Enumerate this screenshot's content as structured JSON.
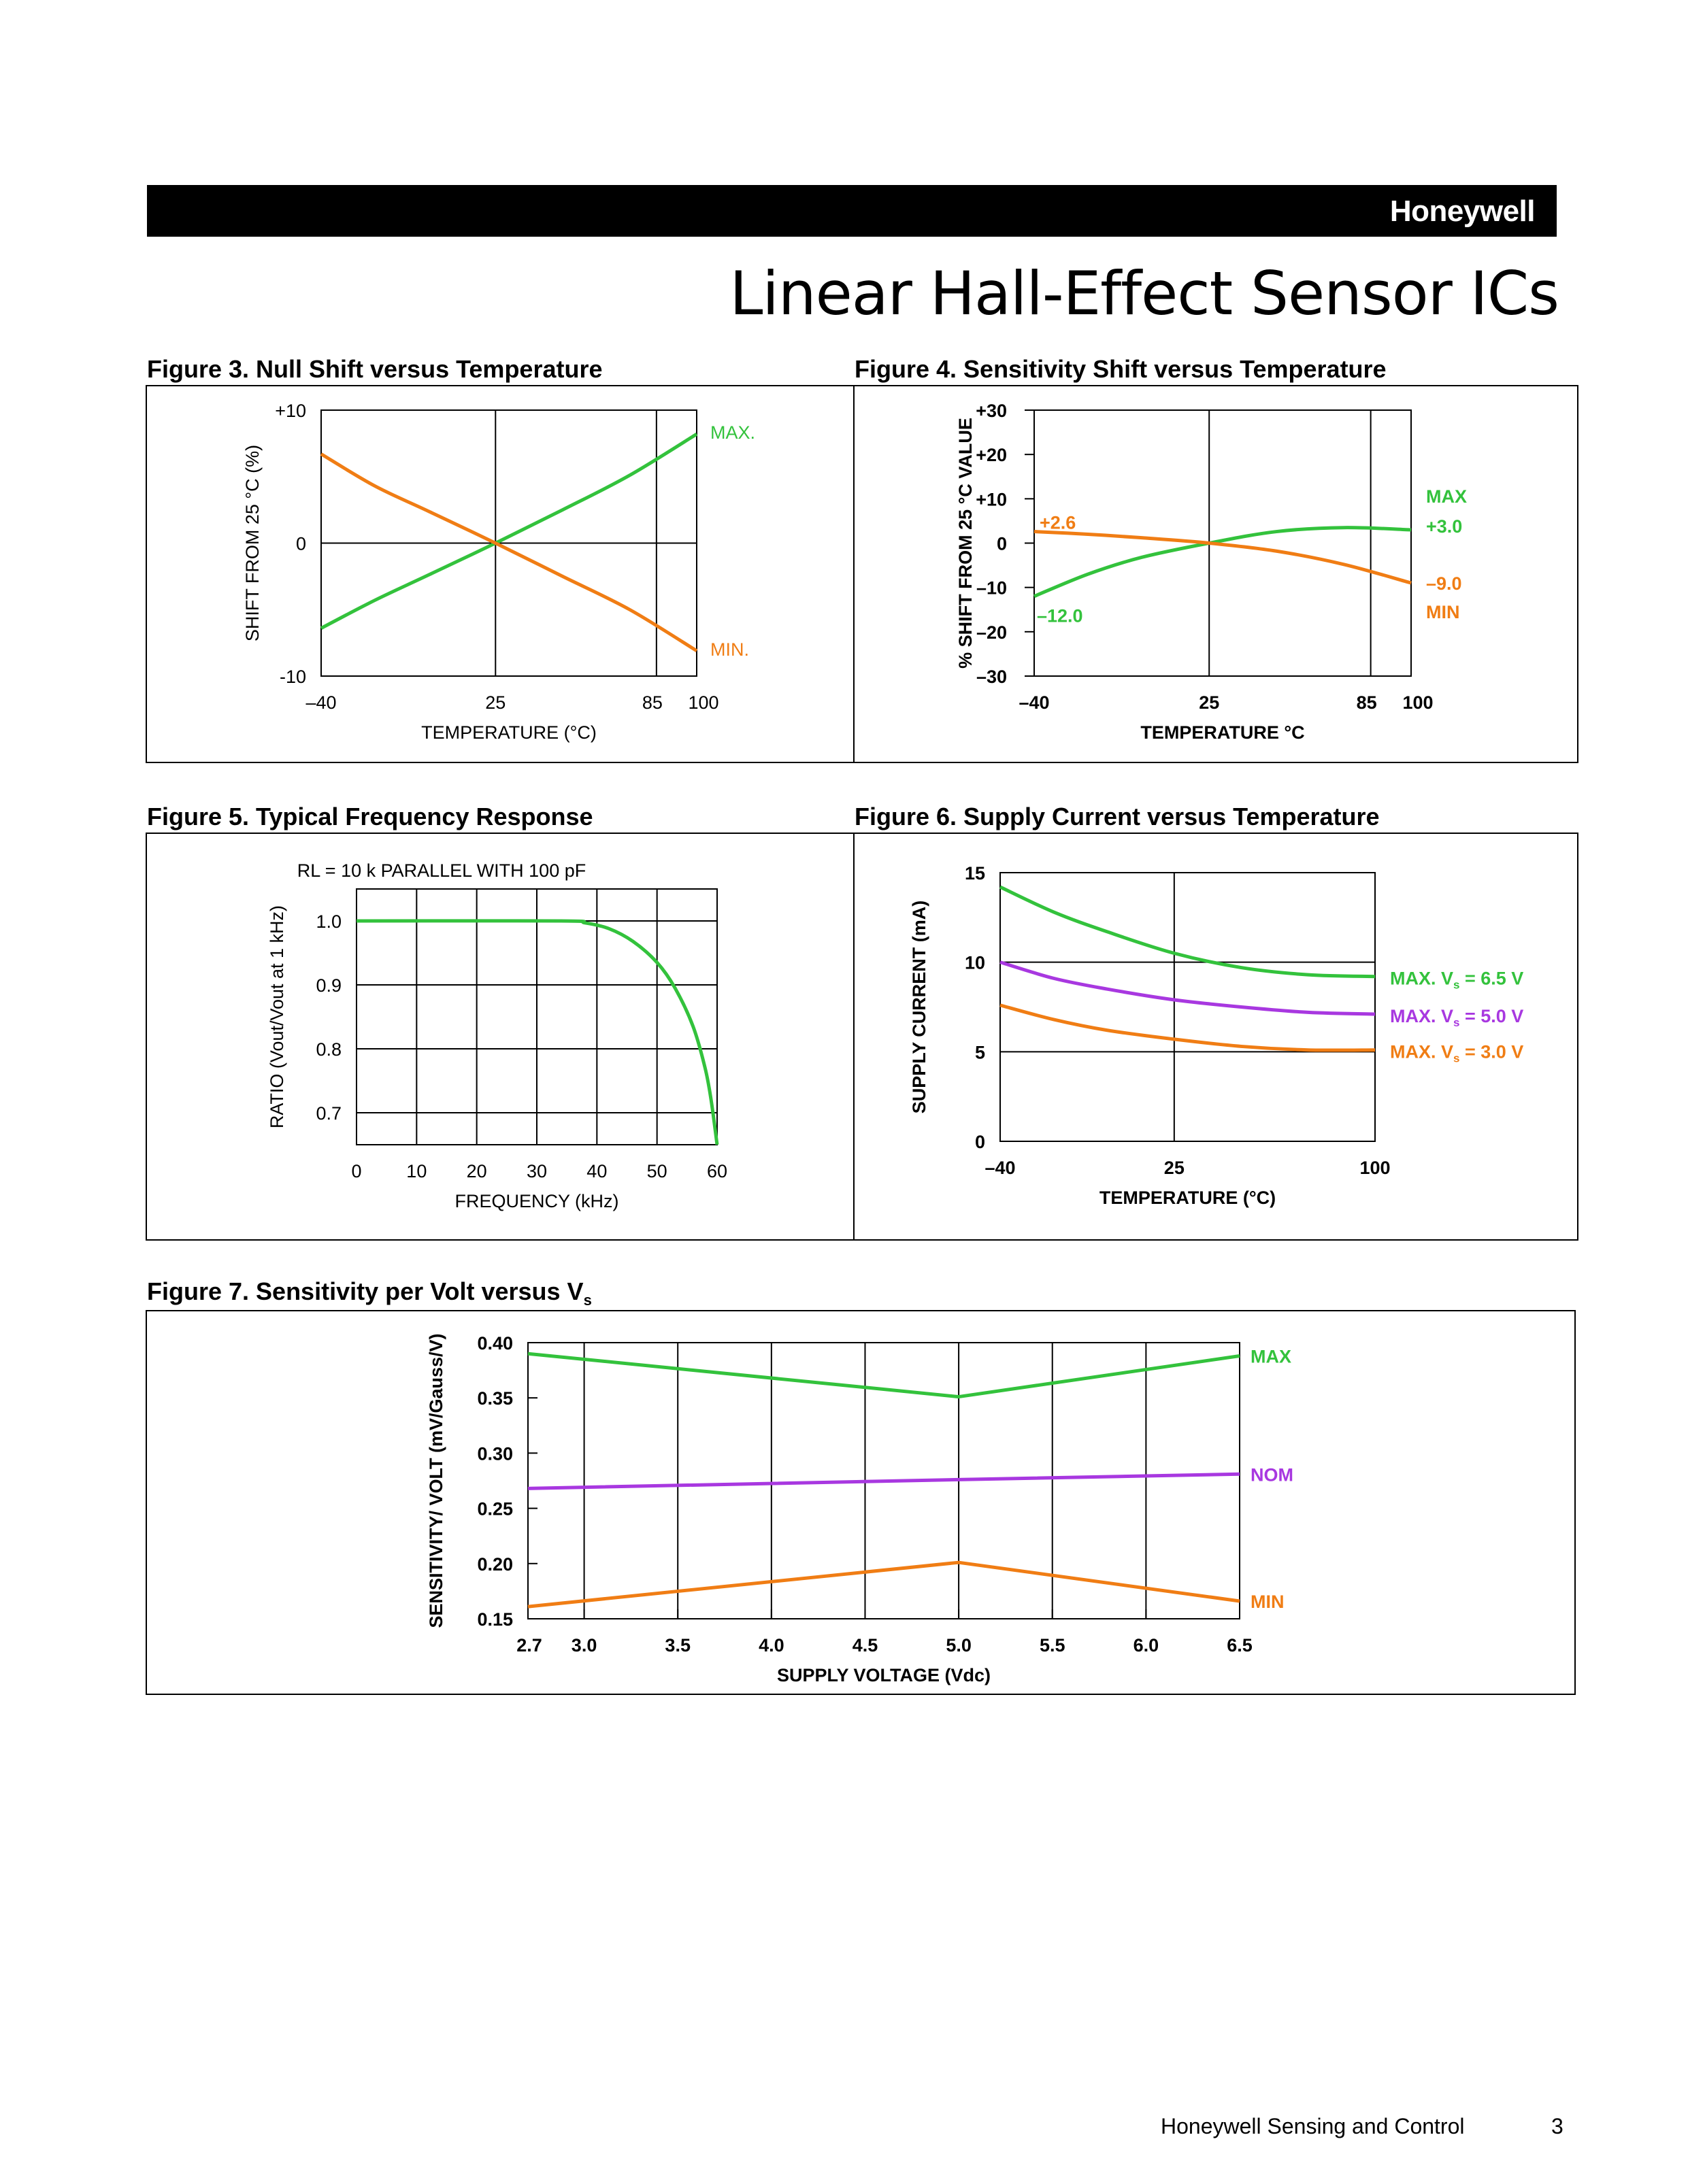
{
  "header": {
    "brand": "Honeywell",
    "title": "Linear Hall-Effect Sensor ICs"
  },
  "footer": {
    "company": "Honeywell Sensing and Control",
    "page_number": "3"
  },
  "colors": {
    "green": "#33c23c",
    "orange": "#f07d14",
    "purple": "#a838e0",
    "black": "#000000"
  },
  "figures": [
    {
      "caption": "Figure 3. Null Shift versus Temperature"
    },
    {
      "caption": "Figure 4. Sensitivity Shift versus Temperature"
    },
    {
      "caption": "Figure 5. Typical Frequency Response"
    },
    {
      "caption": "Figure 6. Supply Current versus Temperature"
    },
    {
      "caption_main": "Figure 7. Sensitivity per Volt versus V",
      "caption_sub": "s"
    }
  ],
  "chart_data": [
    {
      "id": "fig3",
      "type": "line",
      "title": "Figure 3. Null Shift versus Temperature",
      "xlabel": "TEMPERATURE (°C)",
      "ylabel": "SHIFT FROM 25 °C (%)",
      "xlim": [
        -40,
        100
      ],
      "ylim": [
        -10,
        10
      ],
      "x_ticks": [
        {
          "v": -40,
          "label": "–40"
        },
        {
          "v": 25,
          "label": "25"
        },
        {
          "v": 85,
          "label": "85"
        },
        {
          "v": 100,
          "label": "100"
        }
      ],
      "y_ticks": [
        {
          "v": 10,
          "label": "+10"
        },
        {
          "v": 0,
          "label": "0"
        },
        {
          "v": -10,
          "label": "-10"
        }
      ],
      "grid_x": [
        25,
        85
      ],
      "grid_y": [
        0
      ],
      "series": [
        {
          "name": "MAX.",
          "label": "MAX.",
          "color": "green",
          "x": [
            -40,
            -20,
            0,
            25,
            50,
            75,
            100
          ],
          "y": [
            -6.4,
            -4.3,
            -2.4,
            0,
            2.5,
            5.1,
            8.2
          ]
        },
        {
          "name": "MIN.",
          "label": "MIN.",
          "color": "orange",
          "x": [
            -40,
            -20,
            0,
            25,
            50,
            75,
            100
          ],
          "y": [
            6.7,
            4.3,
            2.4,
            0,
            -2.5,
            -5.0,
            -8.1
          ]
        }
      ]
    },
    {
      "id": "fig4",
      "type": "line",
      "title": "Figure 4. Sensitivity Shift versus Temperature",
      "xlabel": "TEMPERATURE °C",
      "ylabel": "% SHIFT FROM 25 °C VALUE",
      "xlim": [
        -40,
        100
      ],
      "ylim": [
        -30,
        30
      ],
      "x_ticks": [
        {
          "v": -40,
          "label": "–40"
        },
        {
          "v": 25,
          "label": "25"
        },
        {
          "v": 85,
          "label": "85"
        },
        {
          "v": 100,
          "label": "100"
        }
      ],
      "y_ticks": [
        {
          "v": 30,
          "label": "+30"
        },
        {
          "v": 20,
          "label": "+20"
        },
        {
          "v": 10,
          "label": "+10"
        },
        {
          "v": 0,
          "label": "0"
        },
        {
          "v": -10,
          "label": "–10"
        },
        {
          "v": -20,
          "label": "–20"
        },
        {
          "v": -30,
          "label": "–30"
        }
      ],
      "grid_x": [
        25,
        85
      ],
      "grid_y": [],
      "series": [
        {
          "name": "MAX",
          "label": "MAX",
          "color": "green",
          "x": [
            -40,
            -20,
            0,
            25,
            50,
            75,
            100
          ],
          "y": [
            -12.0,
            -7.0,
            -3.2,
            0,
            2.6,
            3.5,
            3.0
          ],
          "start_label": "–12.0",
          "end_label": "+3.0"
        },
        {
          "name": "MIN",
          "label": "MIN",
          "color": "orange",
          "x": [
            -40,
            -20,
            0,
            25,
            50,
            75,
            100
          ],
          "y": [
            2.6,
            2.0,
            1.2,
            0,
            -1.8,
            -4.8,
            -9.0
          ],
          "start_label": "+2.6",
          "end_label": "–9.0"
        }
      ]
    },
    {
      "id": "fig5",
      "type": "line",
      "title": "Figure 5. Typical Frequency Response",
      "subtitle": "RL = 10 k PARALLEL WITH 100 pF",
      "xlabel": "FREQUENCY  (kHz)",
      "ylabel": "RATIO (Vout/Vout at 1 kHz)",
      "xlim": [
        0,
        60
      ],
      "ylim": [
        0.65,
        1.05
      ],
      "x_ticks": [
        {
          "v": 0,
          "label": "0"
        },
        {
          "v": 10,
          "label": "10"
        },
        {
          "v": 20,
          "label": "20"
        },
        {
          "v": 30,
          "label": "30"
        },
        {
          "v": 40,
          "label": "40"
        },
        {
          "v": 50,
          "label": "50"
        },
        {
          "v": 60,
          "label": "60"
        }
      ],
      "y_ticks": [
        {
          "v": 1.0,
          "label": "1.0"
        },
        {
          "v": 0.9,
          "label": "0.9"
        },
        {
          "v": 0.8,
          "label": "0.8"
        },
        {
          "v": 0.7,
          "label": "0.7"
        }
      ],
      "grid_x": [
        10,
        20,
        30,
        40,
        50
      ],
      "grid_y": [
        1.0,
        0.9,
        0.8,
        0.7
      ],
      "series": [
        {
          "name": "Response",
          "color": "green",
          "x": [
            0,
            34,
            38,
            42,
            46,
            50,
            53,
            56,
            58,
            59,
            60
          ],
          "y": [
            1.0,
            1.0,
            0.997,
            0.988,
            0.968,
            0.935,
            0.895,
            0.835,
            0.77,
            0.72,
            0.65
          ]
        }
      ]
    },
    {
      "id": "fig6",
      "type": "line",
      "title": "Figure 6. Supply Current versus Temperature",
      "xlabel": "TEMPERATURE (°C)",
      "ylabel": "SUPPLY CURRENT (mA)",
      "xlim": [
        -40,
        100
      ],
      "ylim": [
        0,
        15
      ],
      "x_ticks": [
        {
          "v": -40,
          "label": "–40"
        },
        {
          "v": 25,
          "label": "25"
        },
        {
          "v": 100,
          "label": "100"
        }
      ],
      "y_ticks": [
        {
          "v": 15,
          "label": "15"
        },
        {
          "v": 10,
          "label": "10"
        },
        {
          "v": 5,
          "label": "5"
        },
        {
          "v": 0,
          "label": "0"
        }
      ],
      "grid_x": [
        25
      ],
      "grid_y": [
        10,
        5
      ],
      "series": [
        {
          "name": "MAX. Vs = 6.5 V",
          "label_main": "MAX. V",
          "label_sub": "s",
          "label_tail": " = 6.5 V",
          "color": "green",
          "x": [
            -40,
            -20,
            0,
            25,
            50,
            75,
            100
          ],
          "y": [
            14.2,
            12.8,
            11.7,
            10.5,
            9.7,
            9.3,
            9.2
          ]
        },
        {
          "name": "MAX. Vs = 5.0 V",
          "label_main": "MAX. V",
          "label_sub": "s",
          "label_tail": " = 5.0 V",
          "color": "purple",
          "x": [
            -40,
            -20,
            0,
            25,
            50,
            75,
            100
          ],
          "y": [
            10.0,
            9.1,
            8.5,
            7.9,
            7.5,
            7.2,
            7.1
          ]
        },
        {
          "name": "MAX. Vs = 3.0 V",
          "label_main": "MAX. V",
          "label_sub": "s",
          "label_tail": " = 3.0 V",
          "color": "orange",
          "x": [
            -40,
            -20,
            0,
            25,
            50,
            75,
            100
          ],
          "y": [
            7.6,
            6.8,
            6.2,
            5.7,
            5.3,
            5.1,
            5.1
          ]
        }
      ]
    },
    {
      "id": "fig7",
      "type": "line",
      "title": "Figure 7. Sensitivity per Volt versus Vs",
      "xlabel": "SUPPLY VOLTAGE (Vdc)",
      "ylabel": "SENSITIVITY/ VOLT (mV/Gauss/V)",
      "xlim": [
        2.7,
        6.5
      ],
      "ylim": [
        0.15,
        0.4
      ],
      "x_ticks": [
        {
          "v": 2.7,
          "label": "2.7"
        },
        {
          "v": 3.0,
          "label": "3.0"
        },
        {
          "v": 3.5,
          "label": "3.5"
        },
        {
          "v": 4.0,
          "label": "4.0"
        },
        {
          "v": 4.5,
          "label": "4.5"
        },
        {
          "v": 5.0,
          "label": "5.0"
        },
        {
          "v": 5.5,
          "label": "5.5"
        },
        {
          "v": 6.0,
          "label": "6.0"
        },
        {
          "v": 6.5,
          "label": "6.5"
        }
      ],
      "y_ticks": [
        {
          "v": 0.4,
          "label": "0.40"
        },
        {
          "v": 0.35,
          "label": "0.35"
        },
        {
          "v": 0.3,
          "label": "0.30"
        },
        {
          "v": 0.25,
          "label": "0.25"
        },
        {
          "v": 0.2,
          "label": "0.20"
        },
        {
          "v": 0.15,
          "label": "0.15"
        }
      ],
      "grid_x": [
        3.0,
        3.5,
        4.0,
        4.5,
        5.0,
        5.5,
        6.0
      ],
      "grid_y": [],
      "series": [
        {
          "name": "MAX",
          "label": "MAX",
          "color": "green",
          "x": [
            2.7,
            5.0,
            6.5
          ],
          "y": [
            0.39,
            0.351,
            0.388
          ]
        },
        {
          "name": "NOM",
          "label": "NOM",
          "color": "purple",
          "x": [
            2.7,
            5.0,
            6.5
          ],
          "y": [
            0.268,
            0.276,
            0.281
          ]
        },
        {
          "name": "MIN",
          "label": "MIN",
          "color": "orange",
          "x": [
            2.7,
            5.0,
            6.5
          ],
          "y": [
            0.161,
            0.201,
            0.166
          ]
        }
      ]
    }
  ]
}
